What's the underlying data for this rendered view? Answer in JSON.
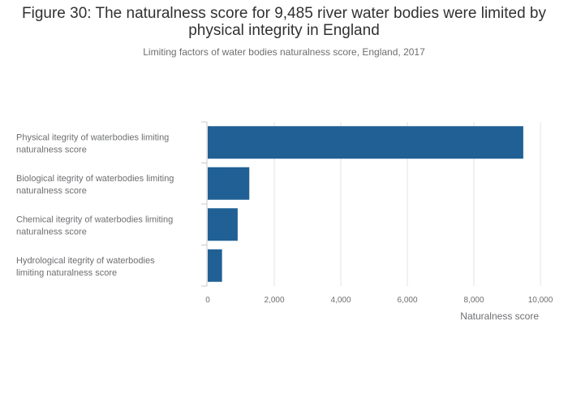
{
  "chart_data": {
    "type": "bar",
    "orientation": "horizontal",
    "title": "Figure 30: The naturalness score for 9,485 river water bodies were limited by physical integrity in England",
    "subtitle": "Limiting factors of water bodies naturalness score, England, 2017",
    "categories": [
      [
        "Physical itegrity of waterbodies limiting",
        "naturalness score"
      ],
      [
        "Biological itegrity of waterbodies limiting",
        "naturalness score"
      ],
      [
        "Chemical itegrity of waterbodies limiting",
        "naturalness score"
      ],
      [
        "Hydrological itegrity of waterbodies",
        "limiting naturalness score"
      ]
    ],
    "values": [
      9485,
      1250,
      900,
      430
    ],
    "xlabel": "Naturalness score",
    "ylabel": "",
    "xlim": [
      0,
      10000
    ],
    "xticks": [
      "0",
      "2,000",
      "4,000",
      "6,000",
      "8,000",
      "10,000"
    ],
    "grid": true,
    "bar_color": "#206095"
  }
}
